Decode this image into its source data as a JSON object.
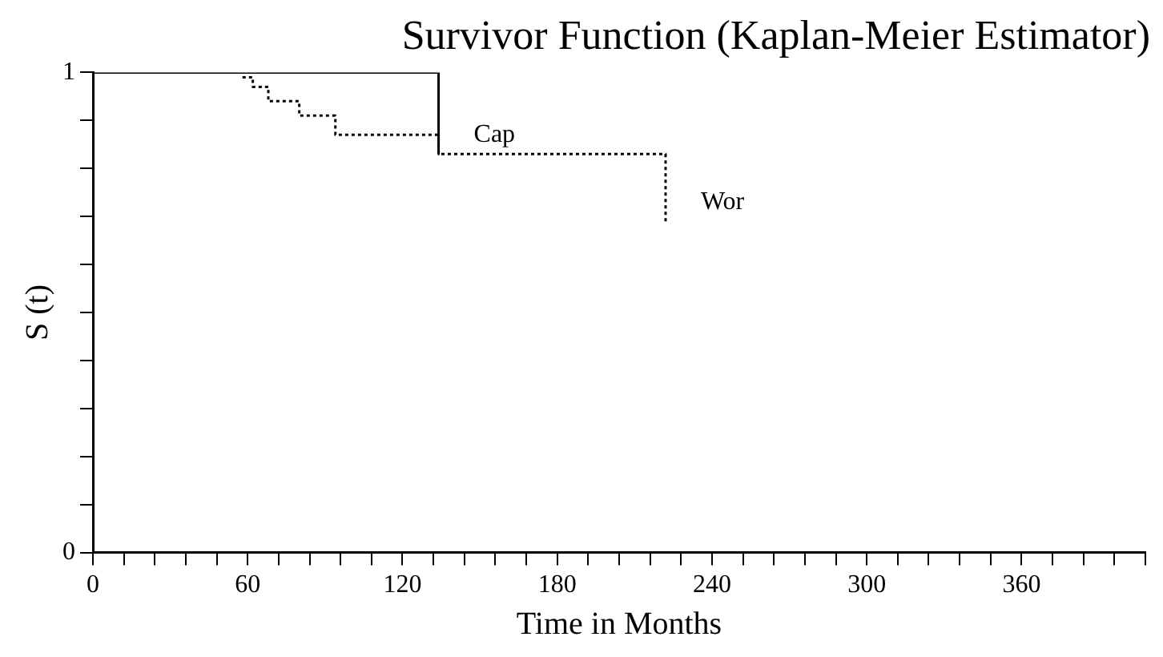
{
  "chart_data": {
    "type": "line",
    "title": "Survivor Function (Kaplan-Meier Estimator)",
    "xlabel": "Time in Months",
    "ylabel": "S (t)",
    "xlim": [
      0,
      408
    ],
    "ylim": [
      0,
      1
    ],
    "xticks": [
      0,
      {
        "value": 12,
        "label": null
      },
      {
        "value": 24,
        "label": null
      },
      {
        "value": 36,
        "label": null
      },
      {
        "value": 48,
        "label": null
      },
      60,
      {
        "value": 72,
        "label": null
      },
      {
        "value": 84,
        "label": null
      },
      {
        "value": 96,
        "label": null
      },
      {
        "value": 108,
        "label": null
      },
      120,
      {
        "value": 132,
        "label": null
      },
      {
        "value": 144,
        "label": null
      },
      {
        "value": 156,
        "label": null
      },
      {
        "value": 168,
        "label": null
      },
      180,
      {
        "value": 192,
        "label": null
      },
      {
        "value": 204,
        "label": null
      },
      {
        "value": 216,
        "label": null
      },
      {
        "value": 228,
        "label": null
      },
      240,
      {
        "value": 252,
        "label": null
      },
      {
        "value": 264,
        "label": null
      },
      {
        "value": 276,
        "label": null
      },
      {
        "value": 288,
        "label": null
      },
      300,
      {
        "value": 312,
        "label": null
      },
      {
        "value": 324,
        "label": null
      },
      {
        "value": 336,
        "label": null
      },
      {
        "value": 348,
        "label": null
      },
      360,
      {
        "value": 372,
        "label": null
      },
      {
        "value": 384,
        "label": null
      },
      {
        "value": 396,
        "label": null
      },
      {
        "value": 408,
        "label": null
      }
    ],
    "yticks": [
      0,
      {
        "value": 0.1,
        "label": null
      },
      {
        "value": 0.2,
        "label": null
      },
      {
        "value": 0.3,
        "label": null
      },
      {
        "value": 0.4,
        "label": null
      },
      {
        "value": 0.5,
        "label": null
      },
      {
        "value": 0.6,
        "label": null
      },
      {
        "value": 0.7,
        "label": null
      },
      {
        "value": 0.8,
        "label": null
      },
      {
        "value": 0.9,
        "label": null
      },
      1
    ],
    "grid": false,
    "legend": false,
    "marker": "none",
    "series": [
      {
        "name": "Cap",
        "color": "#000000",
        "line_style": "solid",
        "x": [
          0,
          134,
          134
        ],
        "values": [
          1,
          1,
          0.83
        ]
      },
      {
        "name": "Wor",
        "color": "#000000",
        "line_style": "dotted",
        "x": [
          58,
          62,
          62,
          68,
          68,
          80,
          80,
          94,
          94,
          134,
          134,
          222,
          222
        ],
        "values": [
          0.99,
          0.99,
          0.97,
          0.97,
          0.94,
          0.94,
          0.91,
          0.91,
          0.87,
          0.87,
          0.83,
          0.83,
          0.69
        ]
      }
    ]
  }
}
